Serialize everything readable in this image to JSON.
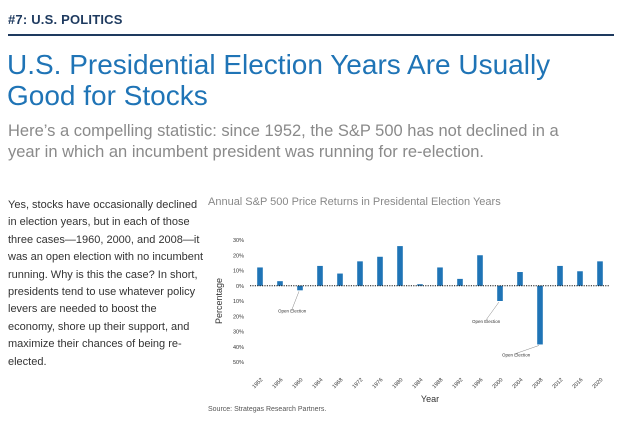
{
  "header": {
    "section": "#7: U.S. POLITICS",
    "title": "U.S. Presidential Election Years Are Usually Good for Stocks",
    "subtitle": "Here’s a compelling statistic: since 1952, the S&P 500 has not declined in a year in which an incumbent president was running for re-election."
  },
  "body": {
    "text": "Yes, stocks have occasionally declined in election years, but in each of those three cases—1960, 2000, and 2008—it was an open election with no incumbent running. Why is this the case? In short, presidents tend to use whatever policy levers are needed to boost the economy, shore up their support, and maximize their chances of being re-elected."
  },
  "source": "Source: Strategas Research Partners.",
  "colors": {
    "bar": "#1f74b6",
    "headline": "#1f74b6",
    "section": "#1e3a5f"
  },
  "chart_data": {
    "type": "bar",
    "title": "Annual S&P 500 Price Returns in Presidental Election Years",
    "xlabel": "Year",
    "ylabel": "Percentage",
    "categories": [
      "1952",
      "1956",
      "1960",
      "1964",
      "1968",
      "1972",
      "1976",
      "1980",
      "1984",
      "1988",
      "1992",
      "1996",
      "2000",
      "2004",
      "2008",
      "2012",
      "2016",
      "2020"
    ],
    "values": [
      12,
      3,
      -3,
      13,
      8,
      16,
      19,
      26,
      1,
      12,
      4.5,
      20,
      -10,
      9,
      -38.5,
      13,
      9.5,
      16
    ],
    "ylim": [
      -50,
      30
    ],
    "yticks": [
      30,
      20,
      10,
      0,
      -10,
      -20,
      -30,
      -40,
      -50
    ],
    "ytick_labels": [
      "30%",
      "20%",
      "10%",
      "0%",
      "10%",
      "20%",
      "30%",
      "40%",
      "50%"
    ],
    "annotations": [
      {
        "category": "1960",
        "text": "Open Election"
      },
      {
        "category": "2000",
        "text": "Open Election"
      },
      {
        "category": "2008",
        "text": "Open Election"
      }
    ],
    "grid": false,
    "zero_line": "dotted"
  }
}
